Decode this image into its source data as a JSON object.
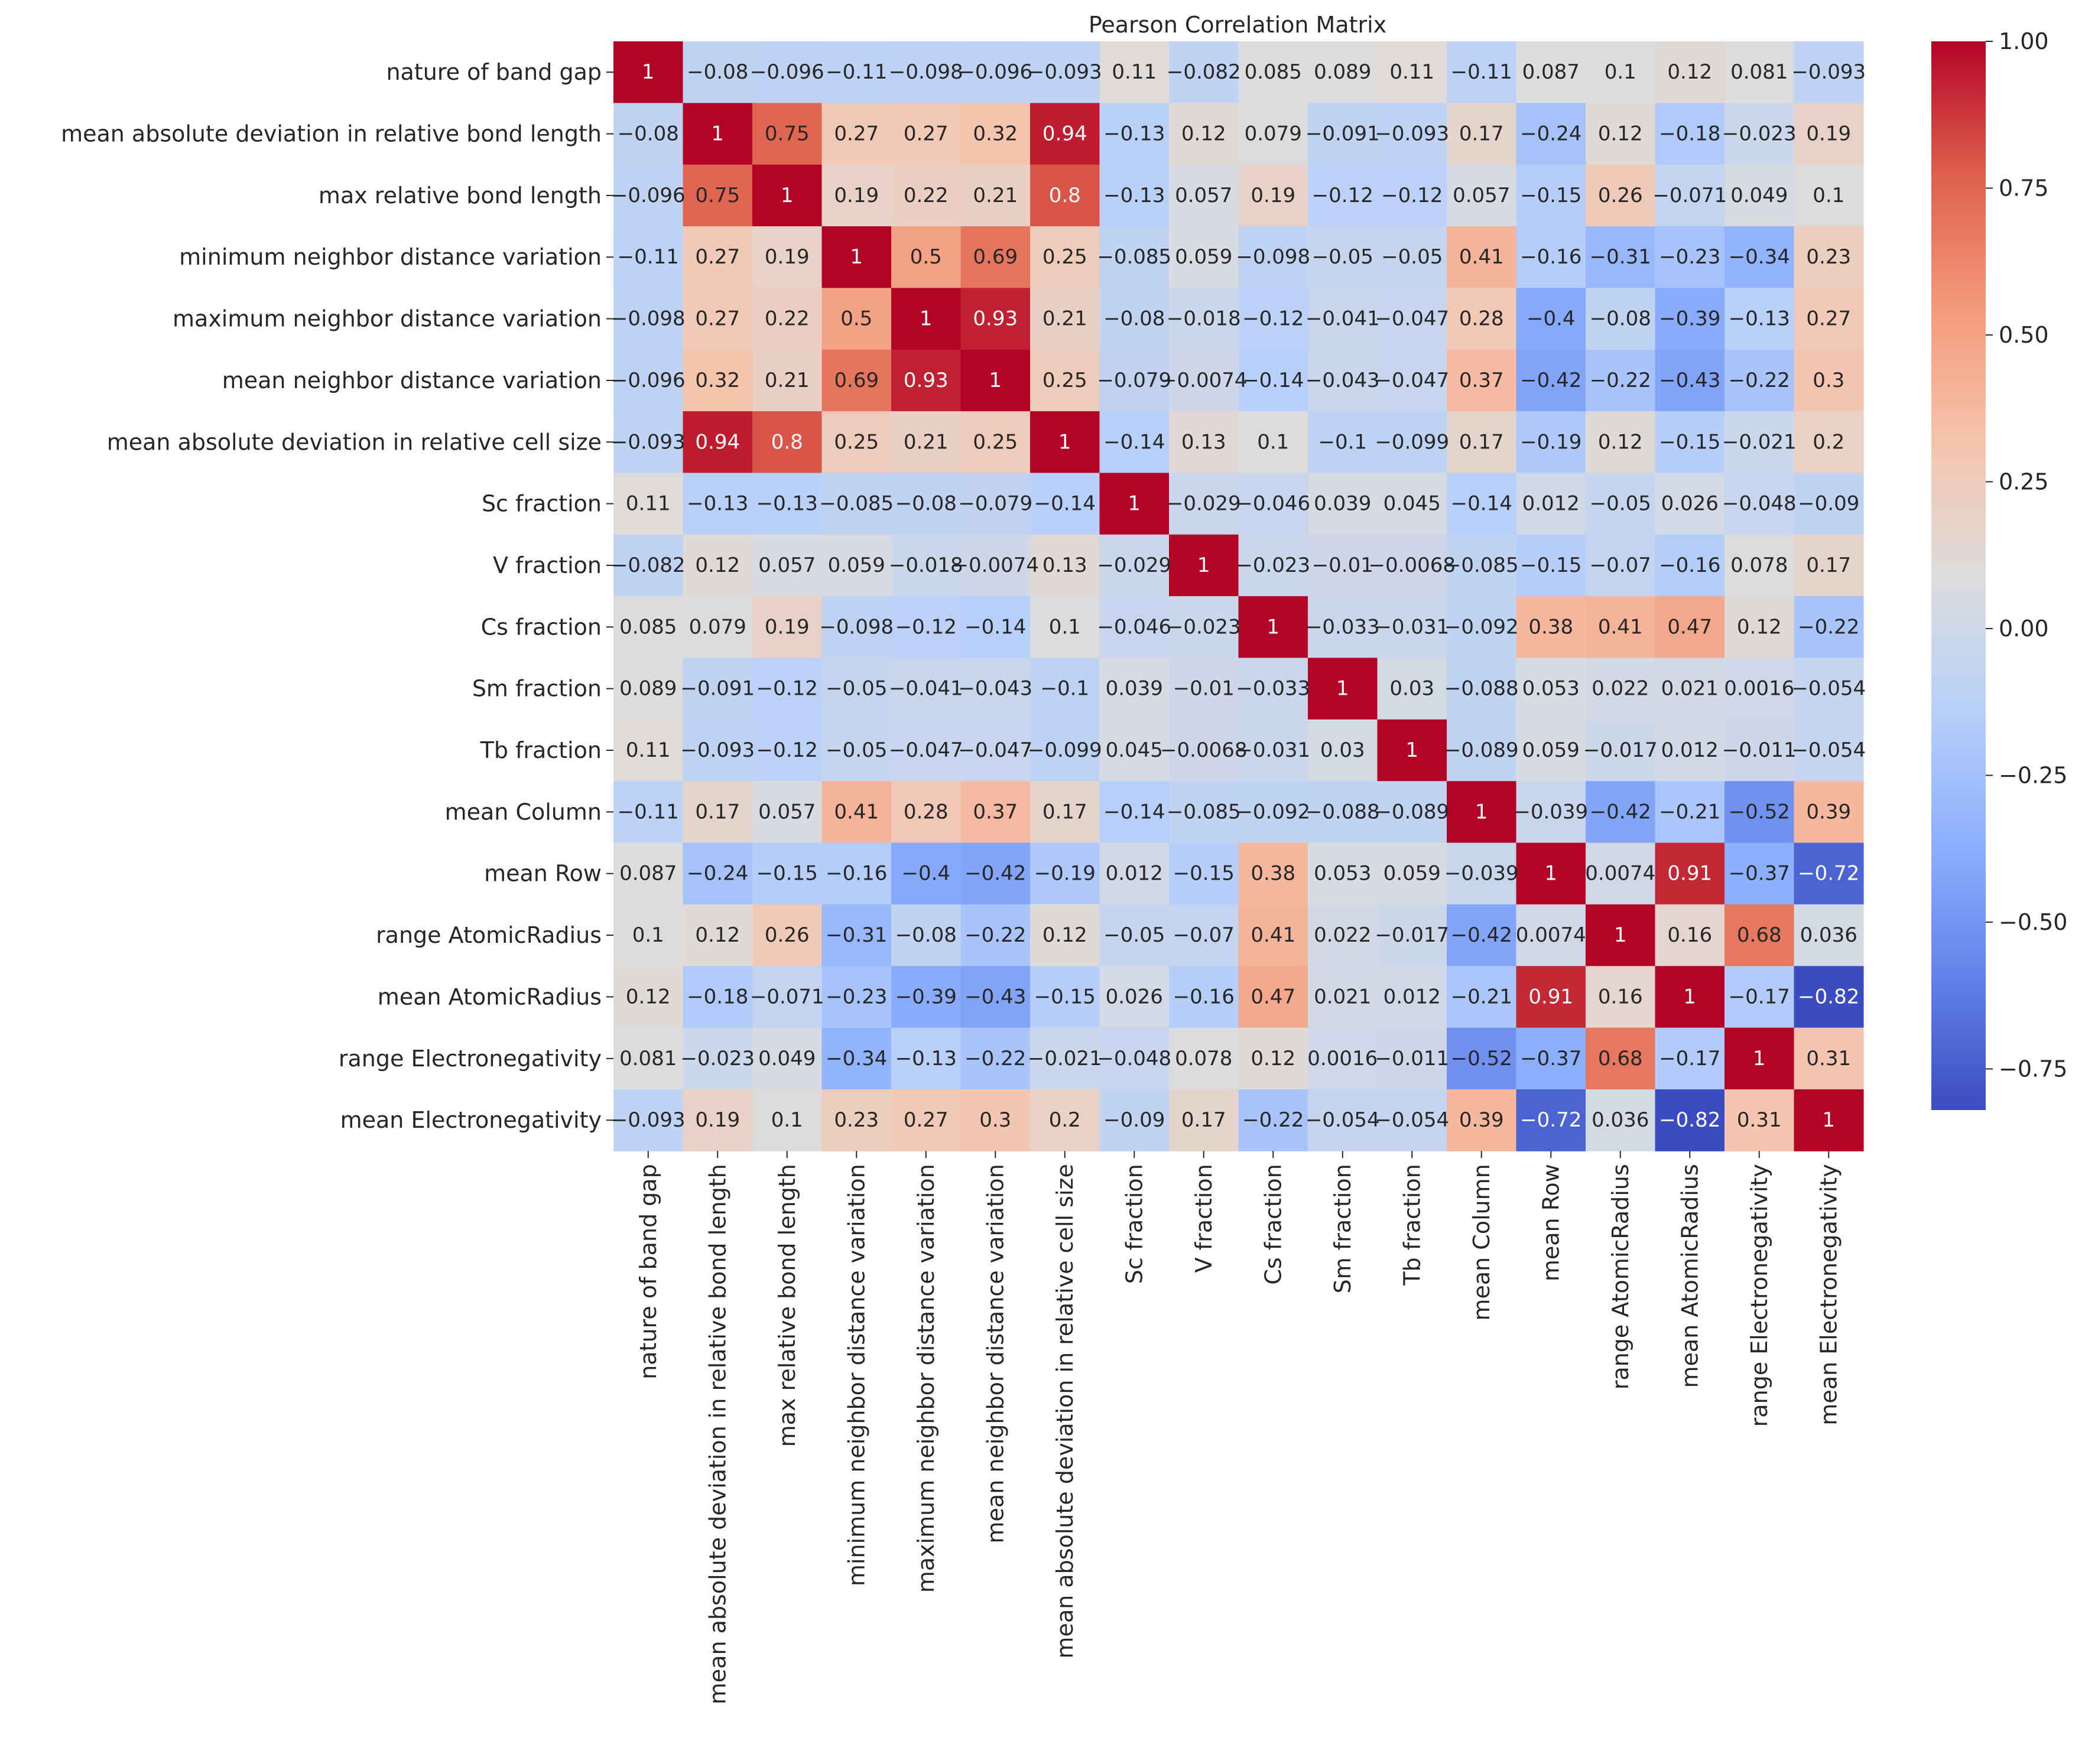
{
  "chart_data": {
    "type": "heatmap",
    "title": "Pearson Correlation Matrix",
    "labels": [
      "nature of band gap",
      "mean absolute deviation in relative bond length",
      "max relative bond length",
      "minimum neighbor distance variation",
      "maximum neighbor distance variation",
      "mean neighbor distance variation",
      "mean absolute deviation in relative cell size",
      "Sc fraction",
      "V fraction",
      "Cs fraction",
      "Sm fraction",
      "Tb fraction",
      "mean Column",
      "mean Row",
      "range AtomicRadius",
      "mean AtomicRadius",
      "range Electronegativity",
      "mean Electronegativity"
    ],
    "values": [
      [
        1,
        -0.08,
        -0.096,
        -0.11,
        -0.098,
        -0.096,
        -0.093,
        0.11,
        -0.082,
        0.085,
        0.089,
        0.11,
        -0.11,
        0.087,
        0.1,
        0.12,
        0.081,
        -0.093
      ],
      [
        -0.08,
        1,
        0.75,
        0.27,
        0.27,
        0.32,
        0.94,
        -0.13,
        0.12,
        0.079,
        -0.091,
        -0.093,
        0.17,
        -0.24,
        0.12,
        -0.18,
        -0.023,
        0.19
      ],
      [
        -0.096,
        0.75,
        1,
        0.19,
        0.22,
        0.21,
        0.8,
        -0.13,
        0.057,
        0.19,
        -0.12,
        -0.12,
        0.057,
        -0.15,
        0.26,
        -0.071,
        0.049,
        0.1
      ],
      [
        -0.11,
        0.27,
        0.19,
        1,
        0.5,
        0.69,
        0.25,
        -0.085,
        0.059,
        -0.098,
        -0.05,
        -0.05,
        0.41,
        -0.16,
        -0.31,
        -0.23,
        -0.34,
        0.23
      ],
      [
        -0.098,
        0.27,
        0.22,
        0.5,
        1,
        0.93,
        0.21,
        -0.08,
        -0.018,
        -0.12,
        -0.041,
        -0.047,
        0.28,
        -0.4,
        -0.08,
        -0.39,
        -0.13,
        0.27
      ],
      [
        -0.096,
        0.32,
        0.21,
        0.69,
        0.93,
        1,
        0.25,
        -0.079,
        -0.0074,
        -0.14,
        -0.043,
        -0.047,
        0.37,
        -0.42,
        -0.22,
        -0.43,
        -0.22,
        0.3
      ],
      [
        -0.093,
        0.94,
        0.8,
        0.25,
        0.21,
        0.25,
        1,
        -0.14,
        0.13,
        0.1,
        -0.1,
        -0.099,
        0.17,
        -0.19,
        0.12,
        -0.15,
        -0.021,
        0.2
      ],
      [
        0.11,
        -0.13,
        -0.13,
        -0.085,
        -0.08,
        -0.079,
        -0.14,
        1,
        -0.029,
        -0.046,
        0.039,
        0.045,
        -0.14,
        0.012,
        -0.05,
        0.026,
        -0.048,
        -0.09
      ],
      [
        -0.082,
        0.12,
        0.057,
        0.059,
        -0.018,
        -0.0074,
        0.13,
        -0.029,
        1,
        -0.023,
        -0.01,
        -0.0068,
        -0.085,
        -0.15,
        -0.07,
        -0.16,
        0.078,
        0.17
      ],
      [
        0.085,
        0.079,
        0.19,
        -0.098,
        -0.12,
        -0.14,
        0.1,
        -0.046,
        -0.023,
        1,
        -0.033,
        -0.031,
        -0.092,
        0.38,
        0.41,
        0.47,
        0.12,
        -0.22
      ],
      [
        0.089,
        -0.091,
        -0.12,
        -0.05,
        -0.041,
        -0.043,
        -0.1,
        0.039,
        -0.01,
        -0.033,
        1,
        0.03,
        -0.088,
        0.053,
        0.022,
        0.021,
        0.0016,
        -0.054
      ],
      [
        0.11,
        -0.093,
        -0.12,
        -0.05,
        -0.047,
        -0.047,
        -0.099,
        0.045,
        -0.0068,
        -0.031,
        0.03,
        1,
        -0.089,
        0.059,
        -0.017,
        0.012,
        -0.011,
        -0.054
      ],
      [
        -0.11,
        0.17,
        0.057,
        0.41,
        0.28,
        0.37,
        0.17,
        -0.14,
        -0.085,
        -0.092,
        -0.088,
        -0.089,
        1,
        -0.039,
        -0.42,
        -0.21,
        -0.52,
        0.39
      ],
      [
        0.087,
        -0.24,
        -0.15,
        -0.16,
        -0.4,
        -0.42,
        -0.19,
        0.012,
        -0.15,
        0.38,
        0.053,
        0.059,
        -0.039,
        1,
        0.0074,
        0.91,
        -0.37,
        -0.72
      ],
      [
        0.1,
        0.12,
        0.26,
        -0.31,
        -0.08,
        -0.22,
        0.12,
        -0.05,
        -0.07,
        0.41,
        0.022,
        -0.017,
        -0.42,
        0.0074,
        1,
        0.16,
        0.68,
        0.036
      ],
      [
        0.12,
        -0.18,
        -0.071,
        -0.23,
        -0.39,
        -0.43,
        -0.15,
        0.026,
        -0.16,
        0.47,
        0.021,
        0.012,
        -0.21,
        0.91,
        0.16,
        1,
        -0.17,
        -0.82
      ],
      [
        0.081,
        -0.023,
        0.049,
        -0.34,
        -0.13,
        -0.22,
        -0.021,
        -0.048,
        0.078,
        0.12,
        0.0016,
        -0.011,
        -0.52,
        -0.37,
        0.68,
        -0.17,
        1,
        0.31
      ],
      [
        -0.093,
        0.19,
        0.1,
        0.23,
        0.27,
        0.3,
        0.2,
        -0.09,
        0.17,
        -0.22,
        -0.054,
        -0.054,
        0.39,
        -0.72,
        0.036,
        -0.82,
        0.31,
        1
      ]
    ],
    "colormap": "coolwarm",
    "vmin": -0.82,
    "vmax": 1.0,
    "colorbar_ticks": [
      1.0,
      0.75,
      0.5,
      0.25,
      0.0,
      -0.25,
      -0.5,
      -0.75
    ],
    "colorbar_tick_labels": [
      "1.00",
      "0.75",
      "0.50",
      "0.25",
      "0.00",
      "−0.25",
      "−0.50",
      "−0.75"
    ],
    "annotated": true
  }
}
